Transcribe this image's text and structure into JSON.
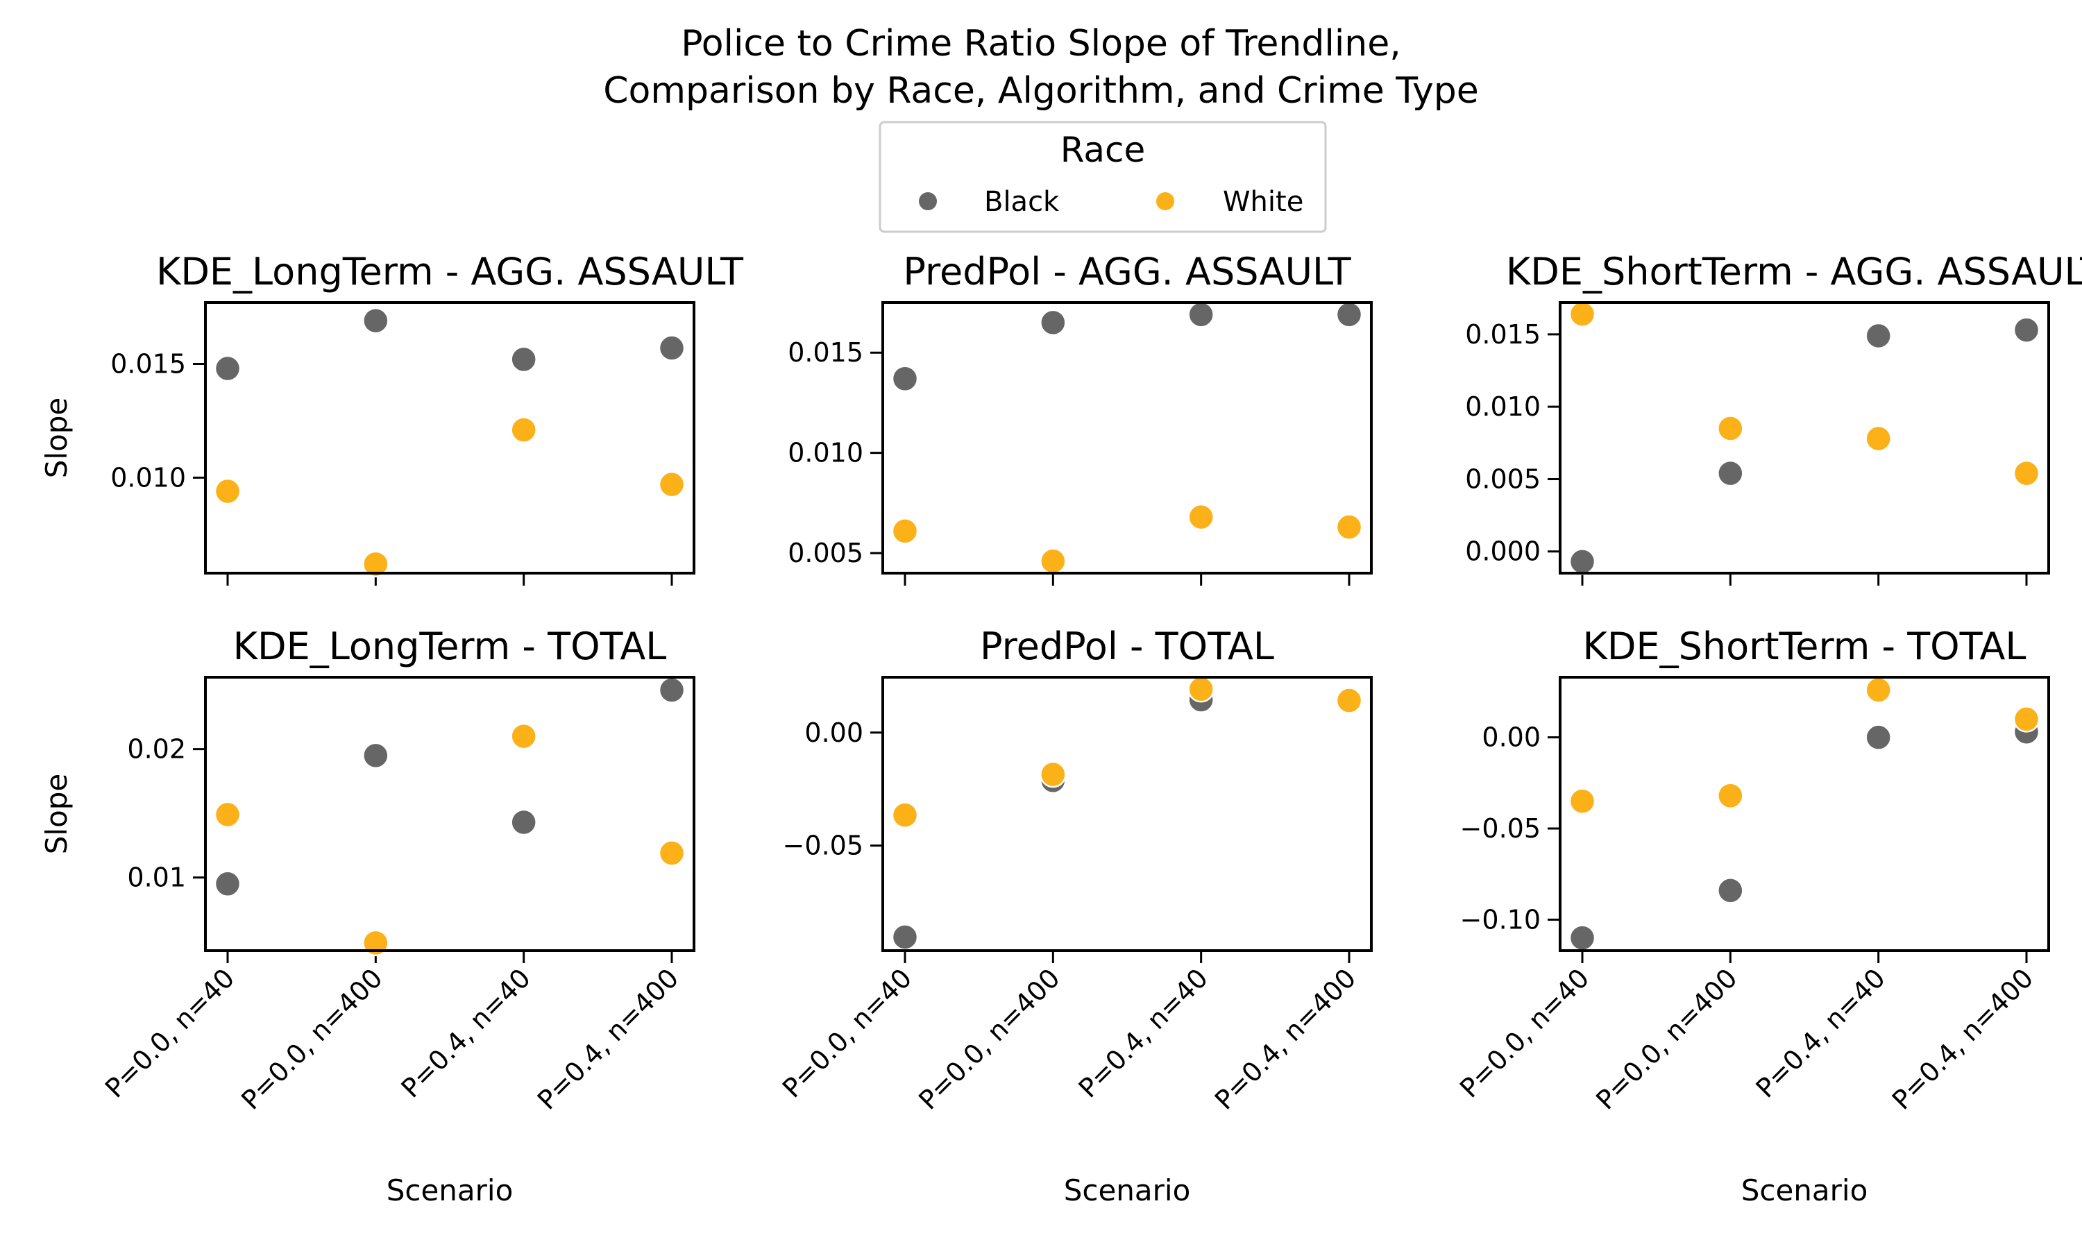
{
  "figure": {
    "title_lines": [
      "Police to Crime Ratio Slope of Trendline,",
      "Comparison by Race, Algorithm, and Crime Type"
    ]
  },
  "legend": {
    "title": "Race",
    "entries": [
      {
        "label": "Black",
        "color": "#666666"
      },
      {
        "label": "White",
        "color": "#fbb117"
      }
    ]
  },
  "chart_data": [
    {
      "type": "scatter",
      "title": "KDE_LongTerm - AGG. ASSAULT",
      "xlabel": "",
      "ylabel": "Slope",
      "categories": [
        "P=0.0, n=40",
        "P=0.0, n=400",
        "P=0.4, n=40",
        "P=0.4, n=400"
      ],
      "ylim": [
        0.0058,
        0.0177
      ],
      "yticks": [
        0.01,
        0.015
      ],
      "ytick_labels": [
        "0.010",
        "0.015"
      ],
      "series": [
        {
          "name": "Black",
          "values": [
            0.0148,
            0.0169,
            0.0152,
            0.0157
          ]
        },
        {
          "name": "White",
          "values": [
            0.0094,
            0.0062,
            0.0121,
            0.0097
          ]
        }
      ]
    },
    {
      "type": "scatter",
      "title": "PredPol - AGG. ASSAULT",
      "xlabel": "",
      "ylabel": "",
      "categories": [
        "P=0.0, n=40",
        "P=0.0, n=400",
        "P=0.4, n=40",
        "P=0.4, n=400"
      ],
      "ylim": [
        0.004,
        0.0175
      ],
      "yticks": [
        0.005,
        0.01,
        0.015
      ],
      "ytick_labels": [
        "0.005",
        "0.010",
        "0.015"
      ],
      "series": [
        {
          "name": "Black",
          "values": [
            0.0137,
            0.0165,
            0.0169,
            0.0169
          ]
        },
        {
          "name": "White",
          "values": [
            0.0061,
            0.0046,
            0.0068,
            0.0063
          ]
        }
      ]
    },
    {
      "type": "scatter",
      "title": "KDE_ShortTerm - AGG. ASSAULT",
      "xlabel": "",
      "ylabel": "",
      "categories": [
        "P=0.0, n=40",
        "P=0.0, n=400",
        "P=0.4, n=40",
        "P=0.4, n=400"
      ],
      "ylim": [
        -0.0015,
        0.0172
      ],
      "yticks": [
        0.0,
        0.005,
        0.01,
        0.015
      ],
      "ytick_labels": [
        "0.000",
        "0.005",
        "0.010",
        "0.015"
      ],
      "series": [
        {
          "name": "Black",
          "values": [
            -0.0007,
            0.0054,
            0.0149,
            0.0153
          ]
        },
        {
          "name": "White",
          "values": [
            0.0164,
            0.0085,
            0.0078,
            0.0054
          ]
        }
      ]
    },
    {
      "type": "scatter",
      "title": "KDE_LongTerm - TOTAL",
      "xlabel": "Scenario",
      "ylabel": "Slope",
      "categories": [
        "P=0.0, n=40",
        "P=0.0, n=400",
        "P=0.4, n=40",
        "P=0.4, n=400"
      ],
      "ylim": [
        0.0043,
        0.0256
      ],
      "yticks": [
        0.01,
        0.02
      ],
      "ytick_labels": [
        "0.01",
        "0.02"
      ],
      "series": [
        {
          "name": "Black",
          "values": [
            0.0095,
            0.0195,
            0.0143,
            0.0246
          ]
        },
        {
          "name": "White",
          "values": [
            0.0149,
            0.0049,
            0.021,
            0.0119
          ]
        }
      ]
    },
    {
      "type": "scatter",
      "title": "PredPol - TOTAL",
      "xlabel": "Scenario",
      "ylabel": "",
      "categories": [
        "P=0.0, n=40",
        "P=0.0, n=400",
        "P=0.4, n=40",
        "P=0.4, n=400"
      ],
      "ylim": [
        -0.0965,
        0.0245
      ],
      "yticks": [
        -0.05,
        0.0
      ],
      "ytick_labels": [
        "−0.05",
        "0.00"
      ],
      "series": [
        {
          "name": "Black",
          "values": [
            -0.0905,
            -0.0212,
            0.0145,
            0.0142
          ]
        },
        {
          "name": "White",
          "values": [
            -0.0365,
            -0.0185,
            0.0192,
            0.0142
          ]
        }
      ]
    },
    {
      "type": "scatter",
      "title": "KDE_ShortTerm - TOTAL",
      "xlabel": "Scenario",
      "ylabel": "",
      "categories": [
        "P=0.0, n=40",
        "P=0.0, n=400",
        "P=0.4, n=40",
        "P=0.4, n=400"
      ],
      "ylim": [
        -0.117,
        0.033
      ],
      "yticks": [
        -0.1,
        -0.05,
        0.0
      ],
      "ytick_labels": [
        "−0.10",
        "−0.05",
        "0.00"
      ],
      "series": [
        {
          "name": "Black",
          "values": [
            -0.11,
            -0.084,
            0.0,
            0.003
          ]
        },
        {
          "name": "White",
          "values": [
            -0.035,
            -0.032,
            0.026,
            0.01
          ]
        }
      ]
    }
  ]
}
